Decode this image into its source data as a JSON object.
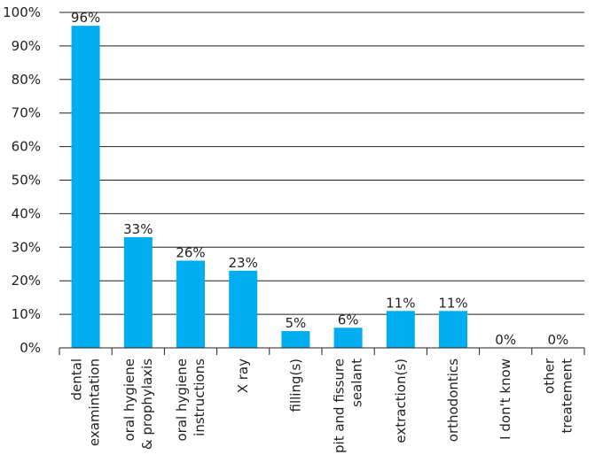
{
  "chart_data": {
    "type": "bar",
    "categories": [
      [
        "dental",
        "examintation"
      ],
      [
        "oral hygiene",
        "& prophylaxis"
      ],
      [
        "oral hygiene",
        "instructions"
      ],
      [
        "X ray"
      ],
      [
        "filling(s)"
      ],
      [
        "pit and fissure",
        "sealant"
      ],
      [
        "extraction(s)"
      ],
      [
        "orthodontics"
      ],
      [
        "I don't know"
      ],
      [
        "other",
        "treatement"
      ]
    ],
    "values": [
      96,
      33,
      26,
      23,
      5,
      6,
      11,
      11,
      0,
      0
    ],
    "value_labels": [
      "96%",
      "33%",
      "26%",
      "23%",
      "5%",
      "6%",
      "11%",
      "11%",
      "0%",
      "0%"
    ],
    "ylim": [
      0,
      100
    ],
    "yticks": [
      0,
      10,
      20,
      30,
      40,
      50,
      60,
      70,
      80,
      90,
      100
    ],
    "ytick_labels": [
      "0%",
      "10%",
      "20%",
      "30%",
      "40%",
      "50%",
      "60%",
      "70%",
      "80%",
      "90%",
      "100%"
    ],
    "title": "",
    "xlabel": "",
    "ylabel": "",
    "grid": "horizontal",
    "legend": "none",
    "bar_color": "#00aeef",
    "grid_color": "#231f20"
  }
}
